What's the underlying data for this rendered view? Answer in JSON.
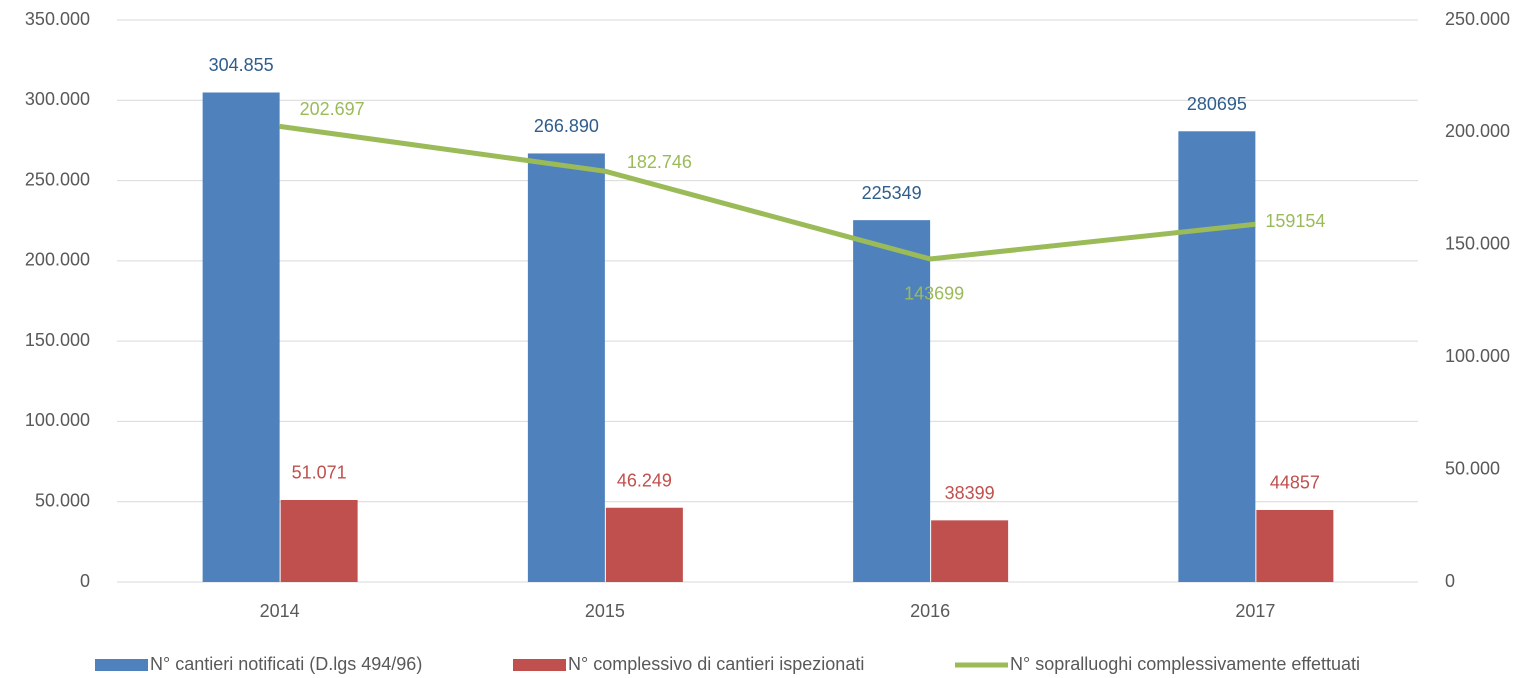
{
  "chart_data": {
    "type": "bar",
    "categories": [
      "2014",
      "2015",
      "2016",
      "2017"
    ],
    "series": [
      {
        "name": "N° cantieri notificati (D.lgs 494/96)",
        "color": "#4f81bd",
        "label_color": "#2f5d8c",
        "values": [
          304855,
          266890,
          225349,
          280695
        ],
        "value_labels": [
          "304.855",
          "266.890",
          "225349",
          "280695"
        ]
      },
      {
        "name": "N° complessivo di cantieri ispezionati",
        "color": "#c0504d",
        "label_color": "#c0504d",
        "values": [
          51071,
          46249,
          38399,
          44857
        ],
        "value_labels": [
          "51.071",
          "46.249",
          "38399",
          "44857"
        ]
      },
      {
        "name": "N° sopralluoghi complessivamente effettuati",
        "color": "#9bbb59",
        "label_color": "#9bbb59",
        "type": "line",
        "axis": "y2",
        "values": [
          202697,
          182746,
          143699,
          159154
        ],
        "value_labels": [
          "202.697",
          "182.746",
          "143699",
          "159154"
        ]
      }
    ],
    "ylim": [
      0,
      350000
    ],
    "yticks": [
      0,
      {
        "value": 50000,
        "label": "50.000"
      },
      {
        "value": 100000,
        "label": "100.000"
      },
      {
        "value": 150000,
        "label": "150.000"
      },
      {
        "value": 200000,
        "label": "200.000"
      },
      {
        "value": 250000,
        "label": "250.000"
      },
      {
        "value": 300000,
        "label": "300.000"
      },
      {
        "value": 350000,
        "label": "350.000"
      }
    ],
    "y2lim": [
      0,
      250000
    ],
    "y2ticks": [
      0,
      {
        "value": 50000,
        "label": "50.000"
      },
      {
        "value": 100000,
        "label": "100.000"
      },
      {
        "value": 150000,
        "label": "150.000"
      },
      {
        "value": 200000,
        "label": "200.000"
      },
      {
        "value": 250000,
        "label": "250.000"
      }
    ],
    "grid": true,
    "legend": "bottom"
  }
}
